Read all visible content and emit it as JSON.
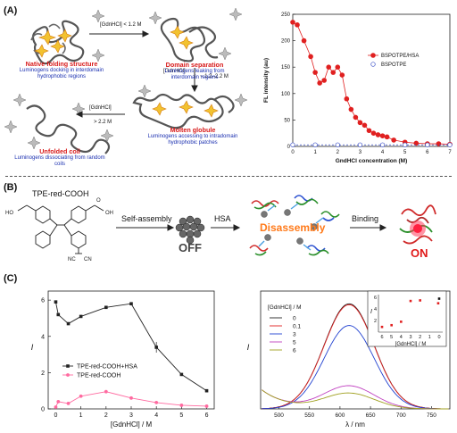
{
  "panel_a": {
    "label": "(A)",
    "native_title": "Native folding structure",
    "native_desc": "Luminogens docking in interdomain hydrophobic regions",
    "domain_title": "Domain separation",
    "domain_desc": "Luminogens leaking from interdomain regions",
    "molten_title": "Molten globule",
    "molten_desc": "Luminogens accessing to intradomain hydrophobic patches",
    "unfolded_title": "Unfolded coil",
    "unfolded_desc": "Luminogens dissociating from random coils",
    "arrow1": "[GdnHCl] < 1.2 M",
    "arrow2a": "[GdnHCl]",
    "arrow2b": "~ 1.2–2.2 M",
    "arrow3a": "[GdnHCl]",
    "arrow3b": "> 2.2 M"
  },
  "panel_b": {
    "label": "(B)",
    "compound": "TPE-red-COOH",
    "step1": "Self-assembly",
    "off": "OFF",
    "step2": "HSA",
    "disassembly": "Disassembly",
    "step3": "Binding",
    "on": "ON"
  },
  "panel_c": {
    "label": "(C)"
  },
  "chart_data": [
    {
      "type": "scatter",
      "ylabel": "FL intensity (au)",
      "xlabel": "GndHCl concentration (M)",
      "xlim": [
        0,
        7
      ],
      "ylim": [
        0,
        250
      ],
      "xticks": [
        "0",
        "1",
        "2",
        "3",
        "4",
        "5",
        "6",
        "7"
      ],
      "yticks": [
        "0",
        "50",
        "100",
        "150",
        "200",
        "250"
      ],
      "legend_position": "right",
      "series": [
        {
          "name": "BSPOTPE/HSA",
          "color": "#e02020",
          "x": [
            0,
            0.2,
            0.5,
            0.8,
            1.0,
            1.2,
            1.4,
            1.6,
            1.8,
            2.0,
            2.2,
            2.4,
            2.6,
            2.8,
            3.0,
            3.2,
            3.4,
            3.6,
            3.8,
            4.0,
            4.2,
            4.5,
            5.0,
            5.5,
            6.0,
            6.5,
            7.0
          ],
          "y": [
            235,
            230,
            200,
            170,
            140,
            120,
            125,
            150,
            140,
            150,
            135,
            90,
            70,
            55,
            45,
            40,
            30,
            25,
            22,
            20,
            18,
            12,
            8,
            6,
            5,
            5,
            4
          ]
        },
        {
          "name": "BSPOTPE",
          "color": "#3a4fc8",
          "x": [
            0,
            1,
            2,
            3,
            4,
            5,
            6,
            7
          ],
          "y": [
            3,
            3,
            3,
            3,
            3,
            3,
            3,
            3
          ]
        }
      ]
    },
    {
      "type": "line",
      "ylabel": "I",
      "xlabel": "[GdnHCl] / M",
      "xlim": [
        -0.3,
        6.3
      ],
      "ylim": [
        0,
        6.5
      ],
      "xticks": [
        "0",
        "1",
        "2",
        "3",
        "4",
        "5",
        "6"
      ],
      "yticks": [
        "0",
        "2",
        "4",
        "6"
      ],
      "series": [
        {
          "name": "TPE-red-COOH+HSA",
          "color": "#222222",
          "x": [
            0,
            0.1,
            0.5,
            1,
            2,
            3,
            4,
            5,
            6
          ],
          "y": [
            5.9,
            5.2,
            4.7,
            5.1,
            5.6,
            5.8,
            3.4,
            1.9,
            1.0
          ]
        },
        {
          "name": "TPE-red-COOH",
          "color": "#ff6aa0",
          "x": [
            0,
            0.1,
            0.5,
            1,
            2,
            3,
            4,
            5,
            6
          ],
          "y": [
            0.1,
            0.4,
            0.3,
            0.7,
            0.95,
            0.6,
            0.35,
            0.2,
            0.15
          ]
        }
      ]
    },
    {
      "type": "line",
      "ylabel": "I",
      "xlabel": "λ / nm",
      "xlim": [
        470,
        780
      ],
      "ylim": [
        0,
        6.5
      ],
      "xticks": [
        "500",
        "550",
        "600",
        "650",
        "700",
        "750"
      ],
      "legend_title": "[GdnHCl] / M",
      "series": [
        {
          "name": "0",
          "color": "#222222",
          "peak": 5.8
        },
        {
          "name": "0.1",
          "color": "#e02020",
          "peak": 5.75
        },
        {
          "name": "3",
          "color": "#2040d0",
          "peak": 4.6
        },
        {
          "name": "5",
          "color": "#c040c0",
          "peak": 1.25
        },
        {
          "name": "6",
          "color": "#a0a020",
          "peak": 0.85
        }
      ]
    },
    {
      "type": "scatter",
      "ylabel": "I",
      "xlabel": "[GdnHCl] / M",
      "xticks": [
        "6",
        "5",
        "4",
        "3",
        "2",
        "1",
        "0"
      ],
      "yticks": [
        "0",
        "2",
        "4",
        "6"
      ],
      "series": [
        {
          "name": "inset",
          "color": "#e02020",
          "x": [
            6,
            5,
            4,
            3,
            2,
            0.1
          ],
          "y": [
            0.9,
            1.2,
            1.8,
            5.4,
            5.5,
            5.0
          ]
        },
        {
          "name": "inset-black",
          "color": "#111111",
          "x": [
            0
          ],
          "y": [
            5.8
          ]
        }
      ]
    }
  ]
}
